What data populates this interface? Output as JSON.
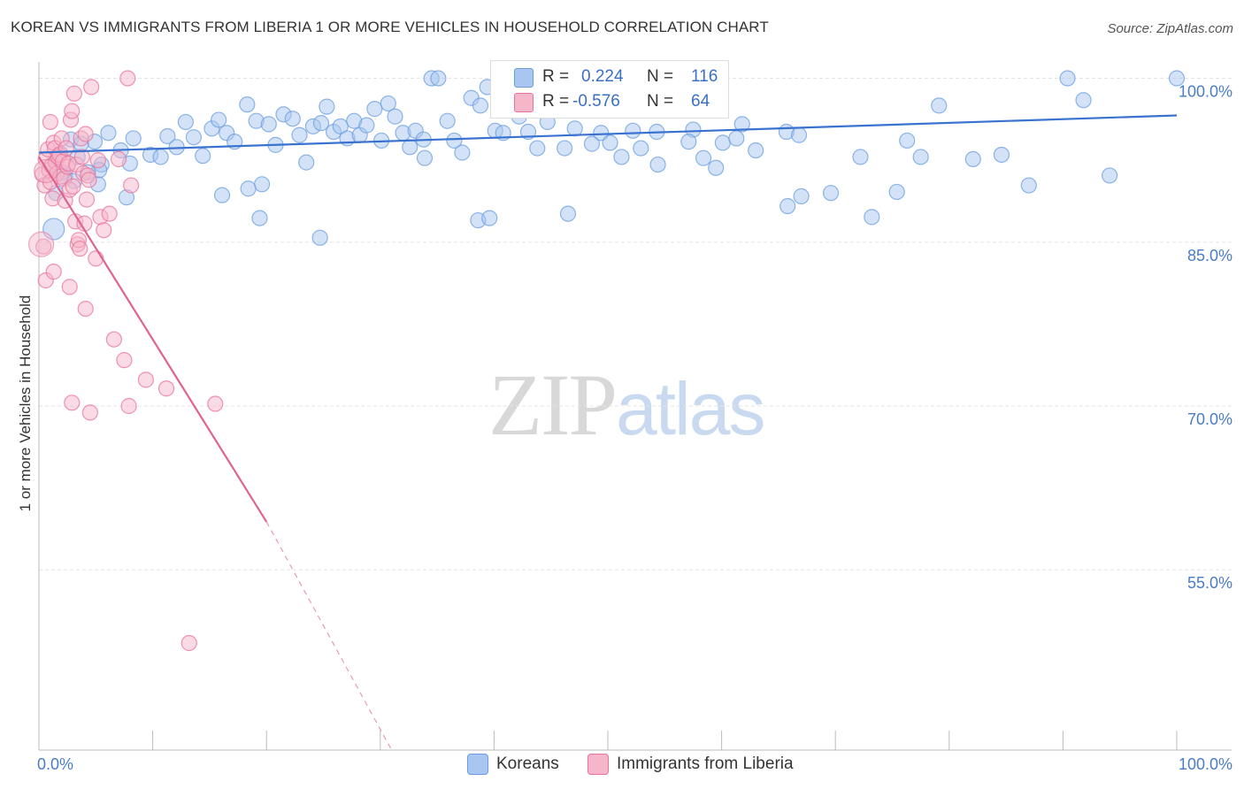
{
  "header": {
    "title": "KOREAN VS IMMIGRANTS FROM LIBERIA 1 OR MORE VEHICLES IN HOUSEHOLD CORRELATION CHART",
    "source": "Source: ZipAtlas.com"
  },
  "watermark": {
    "zip": "ZIP",
    "atlas": "atlas"
  },
  "legend_top": {
    "rows": [
      {
        "r_label": "R =",
        "r_value": "0.224",
        "n_label": "N =",
        "n_value": "116",
        "color": "#a8c6f0"
      },
      {
        "r_label": "R =",
        "r_value": "-0.576",
        "n_label": "N =",
        "n_value": "64",
        "color": "#f5b6c9"
      }
    ]
  },
  "legend_bottom": {
    "items": [
      {
        "label": "Koreans",
        "color": "#a8c6f0"
      },
      {
        "label": "Immigrants from Liberia",
        "color": "#f5b6c9"
      }
    ]
  },
  "chart_data": {
    "type": "scatter",
    "title": "KOREAN VS IMMIGRANTS FROM LIBERIA 1 OR MORE VEHICLES IN HOUSEHOLD CORRELATION CHART",
    "xlabel": "",
    "ylabel": "1 or more Vehicles in Household",
    "xlim": [
      0,
      100
    ],
    "ylim": [
      38.5,
      101.5
    ],
    "x_tick_labels": [
      {
        "value": 0,
        "label": "0.0%"
      },
      {
        "value": 100,
        "label": "100.0%"
      }
    ],
    "y_tick_labels": [
      {
        "value": 55,
        "label": "55.0%"
      },
      {
        "value": 70,
        "label": "70.0%"
      },
      {
        "value": 85,
        "label": "85.0%"
      },
      {
        "value": 100,
        "label": "100.0%"
      }
    ],
    "y_gridlines": [
      55,
      70,
      85,
      100
    ],
    "x_minor_ticks": [
      0,
      10,
      20,
      30,
      40,
      50,
      60,
      70,
      80,
      90,
      100
    ],
    "series": [
      {
        "name": "Koreans",
        "color": "#6a9de0",
        "fill": "#a8c6f0",
        "R": 0.224,
        "N": 116,
        "trend": {
          "x0": 0,
          "y0": 93.2,
          "x1": 100,
          "y1": 96.6
        },
        "points": [
          [
            3.4,
            92.8
          ],
          [
            4.9,
            94.2
          ],
          [
            5.5,
            92.1
          ],
          [
            6.1,
            95.0
          ],
          [
            7.2,
            93.4
          ],
          [
            8.3,
            94.5
          ],
          [
            9.8,
            93.0
          ],
          [
            10.7,
            92.8
          ],
          [
            11.3,
            94.7
          ],
          [
            12.1,
            93.7
          ],
          [
            12.9,
            96.0
          ],
          [
            13.6,
            94.6
          ],
          [
            14.4,
            92.9
          ],
          [
            15.2,
            95.4
          ],
          [
            15.8,
            96.2
          ],
          [
            16.5,
            95.0
          ],
          [
            17.2,
            94.2
          ],
          [
            18.3,
            97.6
          ],
          [
            19.1,
            96.1
          ],
          [
            19.6,
            90.3
          ],
          [
            20.2,
            95.8
          ],
          [
            20.8,
            93.9
          ],
          [
            21.5,
            96.7
          ],
          [
            22.3,
            96.3
          ],
          [
            22.9,
            94.8
          ],
          [
            23.5,
            92.3
          ],
          [
            24.1,
            95.6
          ],
          [
            24.8,
            95.9
          ],
          [
            25.3,
            97.4
          ],
          [
            25.9,
            95.1
          ],
          [
            26.5,
            95.6
          ],
          [
            27.1,
            94.5
          ],
          [
            27.7,
            96.1
          ],
          [
            28.2,
            94.8
          ],
          [
            28.8,
            95.7
          ],
          [
            29.5,
            97.2
          ],
          [
            30.1,
            94.3
          ],
          [
            30.7,
            97.7
          ],
          [
            31.3,
            96.5
          ],
          [
            32.0,
            95.0
          ],
          [
            32.6,
            93.7
          ],
          [
            33.1,
            95.2
          ],
          [
            33.8,
            94.4
          ],
          [
            34.5,
            100.0
          ],
          [
            35.1,
            100.0
          ],
          [
            35.9,
            96.1
          ],
          [
            36.5,
            94.3
          ],
          [
            37.2,
            93.2
          ],
          [
            38.0,
            98.2
          ],
          [
            38.8,
            97.5
          ],
          [
            39.4,
            99.2
          ],
          [
            40.1,
            95.2
          ],
          [
            40.8,
            95.0
          ],
          [
            42.2,
            96.5
          ],
          [
            43.0,
            95.1
          ],
          [
            43.8,
            93.6
          ],
          [
            44.7,
            96.0
          ],
          [
            45.4,
            98.0
          ],
          [
            46.2,
            93.6
          ],
          [
            47.1,
            95.4
          ],
          [
            47.9,
            98.3
          ],
          [
            48.6,
            94.0
          ],
          [
            49.4,
            95.0
          ],
          [
            50.2,
            94.1
          ],
          [
            52.2,
            95.2
          ],
          [
            54.3,
            95.1
          ],
          [
            57.5,
            95.3
          ],
          [
            60.1,
            94.1
          ],
          [
            61.8,
            95.8
          ],
          [
            63.0,
            93.4
          ],
          [
            65.8,
            88.3
          ],
          [
            67.0,
            89.2
          ],
          [
            69.6,
            89.5
          ],
          [
            73.2,
            87.3
          ],
          [
            75.4,
            89.6
          ],
          [
            79.1,
            97.5
          ],
          [
            84.6,
            93.0
          ],
          [
            90.4,
            100.0
          ],
          [
            91.8,
            98.0
          ],
          [
            100.0,
            100.0
          ],
          [
            2.1,
            91.4
          ],
          [
            2.8,
            94.4
          ],
          [
            3.7,
            94.0
          ],
          [
            5.2,
            90.3
          ],
          [
            5.3,
            91.6
          ],
          [
            7.7,
            89.1
          ],
          [
            8.0,
            92.2
          ],
          [
            16.1,
            89.3
          ],
          [
            18.4,
            89.9
          ],
          [
            19.4,
            87.2
          ],
          [
            24.7,
            85.4
          ],
          [
            33.9,
            92.7
          ],
          [
            38.6,
            87.0
          ],
          [
            39.6,
            87.2
          ],
          [
            46.5,
            87.6
          ],
          [
            51.2,
            92.8
          ],
          [
            52.9,
            93.6
          ],
          [
            54.4,
            92.1
          ],
          [
            57.1,
            94.2
          ],
          [
            58.4,
            92.7
          ],
          [
            59.5,
            91.8
          ],
          [
            61.3,
            94.5
          ],
          [
            65.7,
            95.1
          ],
          [
            66.8,
            94.8
          ],
          [
            72.2,
            92.8
          ],
          [
            76.3,
            94.3
          ],
          [
            77.5,
            92.8
          ],
          [
            82.1,
            92.6
          ],
          [
            87.0,
            90.2
          ],
          [
            94.1,
            91.1
          ],
          [
            1.2,
            92.1
          ],
          [
            1.5,
            89.5
          ],
          [
            1.9,
            93.1
          ],
          [
            2.3,
            91.0
          ],
          [
            3.1,
            90.6
          ],
          [
            4.3,
            91.4
          ]
        ]
      },
      {
        "name": "Immigrants from Liberia",
        "color": "#e8739a",
        "fill": "#f5b6c9",
        "R": -0.576,
        "N": 64,
        "trend": {
          "x0": 0,
          "y0": 92.8,
          "x1": 20.0,
          "y1": 59.4,
          "dash_to_x": 31.0,
          "dash_to_y": 38.5
        },
        "points": [
          [
            0.3,
            91.2
          ],
          [
            0.5,
            90.2
          ],
          [
            0.6,
            92.6
          ],
          [
            0.8,
            93.5
          ],
          [
            0.9,
            91.6
          ],
          [
            1.0,
            90.5
          ],
          [
            1.1,
            92.0
          ],
          [
            1.2,
            89.0
          ],
          [
            1.3,
            94.1
          ],
          [
            1.4,
            93.6
          ],
          [
            1.5,
            92.3
          ],
          [
            1.6,
            91.3
          ],
          [
            1.7,
            92.8
          ],
          [
            1.8,
            93.0
          ],
          [
            1.9,
            91.0
          ],
          [
            2.0,
            94.5
          ],
          [
            2.1,
            92.4
          ],
          [
            2.2,
            90.8
          ],
          [
            2.3,
            88.8
          ],
          [
            2.4,
            93.6
          ],
          [
            2.5,
            91.9
          ],
          [
            2.6,
            92.2
          ],
          [
            2.7,
            89.8
          ],
          [
            2.8,
            96.2
          ],
          [
            2.9,
            97.0
          ],
          [
            3.0,
            90.1
          ],
          [
            3.1,
            98.6
          ],
          [
            3.2,
            86.9
          ],
          [
            3.3,
            92.1
          ],
          [
            3.4,
            84.8
          ],
          [
            3.5,
            85.2
          ],
          [
            3.6,
            84.4
          ],
          [
            3.7,
            94.5
          ],
          [
            3.8,
            92.8
          ],
          [
            3.9,
            91.3
          ],
          [
            4.0,
            86.7
          ],
          [
            4.1,
            94.9
          ],
          [
            4.2,
            88.9
          ],
          [
            4.3,
            91.1
          ],
          [
            4.4,
            90.7
          ],
          [
            4.6,
            99.2
          ],
          [
            5.0,
            83.5
          ],
          [
            5.2,
            92.5
          ],
          [
            5.4,
            87.3
          ],
          [
            5.7,
            86.1
          ],
          [
            6.2,
            87.6
          ],
          [
            7.0,
            92.6
          ],
          [
            7.8,
            100.0
          ],
          [
            8.1,
            90.2
          ],
          [
            0.4,
            84.6
          ],
          [
            0.6,
            81.5
          ],
          [
            1.3,
            82.3
          ],
          [
            2.7,
            80.9
          ],
          [
            4.1,
            78.9
          ],
          [
            6.6,
            76.1
          ],
          [
            7.5,
            74.2
          ],
          [
            9.4,
            72.4
          ],
          [
            11.2,
            71.6
          ],
          [
            15.5,
            70.2
          ],
          [
            2.9,
            70.3
          ],
          [
            4.5,
            69.4
          ],
          [
            7.9,
            70.0
          ],
          [
            13.2,
            48.3
          ],
          [
            1.0,
            96.0
          ]
        ]
      }
    ]
  }
}
